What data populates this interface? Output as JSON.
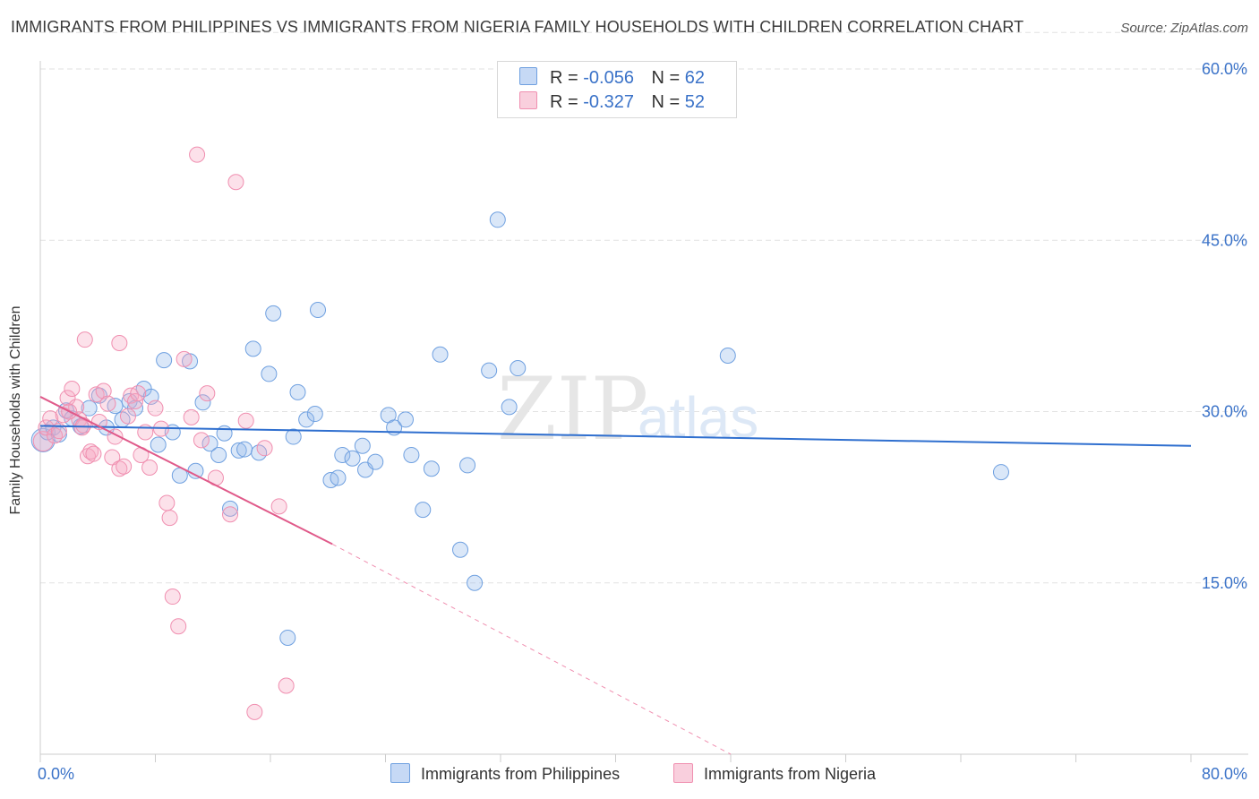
{
  "title": "IMMIGRANTS FROM PHILIPPINES VS IMMIGRANTS FROM NIGERIA FAMILY HOUSEHOLDS WITH CHILDREN CORRELATION CHART",
  "source": "Source: ZipAtlas.com",
  "watermark": {
    "zip": "ZIP",
    "atlas": "atlas"
  },
  "legend": {
    "rows": [
      {
        "r_label": "R =",
        "r_value": "-0.056",
        "n_label": "N =",
        "n_value": "62"
      },
      {
        "r_label": "R =",
        "r_value": "-0.327",
        "n_label": "N =",
        "n_value": "52"
      }
    ]
  },
  "chart_data": {
    "type": "scatter",
    "title": "IMMIGRANTS FROM PHILIPPINES VS IMMIGRANTS FROM NIGERIA FAMILY HOUSEHOLDS WITH CHILDREN CORRELATION CHART",
    "xlabel": "",
    "ylabel": "Family Households with Children",
    "xlim": [
      0,
      80
    ],
    "ylim": [
      0,
      64
    ],
    "x_tick_labels": [
      "0.0%",
      "80.0%"
    ],
    "y_ticks": [
      15,
      30,
      45,
      60
    ],
    "y_tick_labels": [
      "15.0%",
      "30.0%",
      "45.0%",
      "60.0%"
    ],
    "grid": true,
    "legend_position": "bottom",
    "colors": {
      "philippines": "#6fa0e0",
      "nigeria": "#f08fb0",
      "philippines_line": "#2f6fcf",
      "nigeria_line": "#e05a8a"
    },
    "series": [
      {
        "name": "Immigrants from Philippines",
        "color": "#6fa0e0",
        "points": [
          [
            0.2,
            27.5
          ],
          [
            0.5,
            28.2
          ],
          [
            0.9,
            28.6
          ],
          [
            1.3,
            28.0
          ],
          [
            1.8,
            30.1
          ],
          [
            2.2,
            29.4
          ],
          [
            2.8,
            28.7
          ],
          [
            3.4,
            30.3
          ],
          [
            4.1,
            31.4
          ],
          [
            4.6,
            28.6
          ],
          [
            5.2,
            30.5
          ],
          [
            5.7,
            29.3
          ],
          [
            6.2,
            30.9
          ],
          [
            6.6,
            30.3
          ],
          [
            7.2,
            32.0
          ],
          [
            7.7,
            31.3
          ],
          [
            8.2,
            27.1
          ],
          [
            8.6,
            34.5
          ],
          [
            9.2,
            28.2
          ],
          [
            9.7,
            24.4
          ],
          [
            10.4,
            34.4
          ],
          [
            10.8,
            24.8
          ],
          [
            11.3,
            30.8
          ],
          [
            11.8,
            27.2
          ],
          [
            12.4,
            26.2
          ],
          [
            12.8,
            28.1
          ],
          [
            13.2,
            21.5
          ],
          [
            13.8,
            26.6
          ],
          [
            14.2,
            26.7
          ],
          [
            14.8,
            35.5
          ],
          [
            15.2,
            26.4
          ],
          [
            15.9,
            33.3
          ],
          [
            16.2,
            38.6
          ],
          [
            17.2,
            10.2
          ],
          [
            17.6,
            27.8
          ],
          [
            17.9,
            31.7
          ],
          [
            18.5,
            29.3
          ],
          [
            19.1,
            29.8
          ],
          [
            19.3,
            38.9
          ],
          [
            20.2,
            24.0
          ],
          [
            20.7,
            24.2
          ],
          [
            21.0,
            26.2
          ],
          [
            21.7,
            25.9
          ],
          [
            22.4,
            27.0
          ],
          [
            22.6,
            24.9
          ],
          [
            23.3,
            25.6
          ],
          [
            24.2,
            29.7
          ],
          [
            24.6,
            28.6
          ],
          [
            25.4,
            29.3
          ],
          [
            25.8,
            26.2
          ],
          [
            26.6,
            21.4
          ],
          [
            27.2,
            25.0
          ],
          [
            27.8,
            35.0
          ],
          [
            29.2,
            17.9
          ],
          [
            29.7,
            25.3
          ],
          [
            30.2,
            15.0
          ],
          [
            31.2,
            33.6
          ],
          [
            31.8,
            46.8
          ],
          [
            32.6,
            30.4
          ],
          [
            33.2,
            33.8
          ],
          [
            47.8,
            34.9
          ],
          [
            66.8,
            24.7
          ]
        ]
      },
      {
        "name": "Immigrants from Nigeria",
        "color": "#f08fb0",
        "points": [
          [
            0.2,
            27.4
          ],
          [
            0.4,
            28.6
          ],
          [
            0.7,
            29.4
          ],
          [
            1.0,
            27.9
          ],
          [
            1.3,
            28.3
          ],
          [
            1.6,
            29.7
          ],
          [
            1.9,
            31.2
          ],
          [
            2.2,
            32.0
          ],
          [
            2.5,
            30.4
          ],
          [
            2.7,
            29.3
          ],
          [
            2.9,
            28.6
          ],
          [
            3.1,
            36.3
          ],
          [
            3.3,
            26.1
          ],
          [
            3.5,
            26.5
          ],
          [
            3.7,
            26.3
          ],
          [
            3.9,
            31.5
          ],
          [
            4.1,
            29.1
          ],
          [
            4.4,
            31.8
          ],
          [
            4.7,
            30.7
          ],
          [
            5.0,
            26.0
          ],
          [
            5.2,
            27.8
          ],
          [
            5.5,
            25.0
          ],
          [
            5.8,
            25.2
          ],
          [
            6.1,
            29.6
          ],
          [
            6.3,
            31.4
          ],
          [
            6.6,
            30.9
          ],
          [
            7.0,
            26.2
          ],
          [
            7.3,
            28.2
          ],
          [
            7.6,
            25.1
          ],
          [
            8.0,
            30.3
          ],
          [
            8.4,
            28.5
          ],
          [
            8.8,
            22.0
          ],
          [
            9.0,
            20.7
          ],
          [
            9.2,
            13.8
          ],
          [
            9.6,
            11.2
          ],
          [
            10.0,
            34.6
          ],
          [
            10.5,
            29.5
          ],
          [
            10.9,
            52.5
          ],
          [
            11.2,
            27.5
          ],
          [
            11.6,
            31.6
          ],
          [
            12.2,
            24.2
          ],
          [
            13.2,
            21.0
          ],
          [
            13.6,
            50.1
          ],
          [
            14.3,
            29.2
          ],
          [
            14.9,
            3.7
          ],
          [
            15.6,
            26.8
          ],
          [
            16.6,
            21.7
          ],
          [
            17.1,
            6.0
          ],
          [
            5.5,
            36.0
          ],
          [
            3.0,
            28.8
          ],
          [
            2.0,
            30.0
          ],
          [
            6.8,
            31.6
          ]
        ]
      }
    ],
    "trendlines": [
      {
        "series": "Immigrants from Philippines",
        "x": [
          0,
          80
        ],
        "y": [
          28.75,
          27.0
        ]
      },
      {
        "series": "Immigrants from Nigeria",
        "x": [
          0,
          20.3
        ],
        "y": [
          31.3,
          18.4
        ],
        "dashed_extension_to": [
          48,
          0
        ]
      }
    ]
  },
  "bottom_legend": [
    {
      "label": "Immigrants from Philippines"
    },
    {
      "label": "Immigrants from Nigeria"
    }
  ]
}
